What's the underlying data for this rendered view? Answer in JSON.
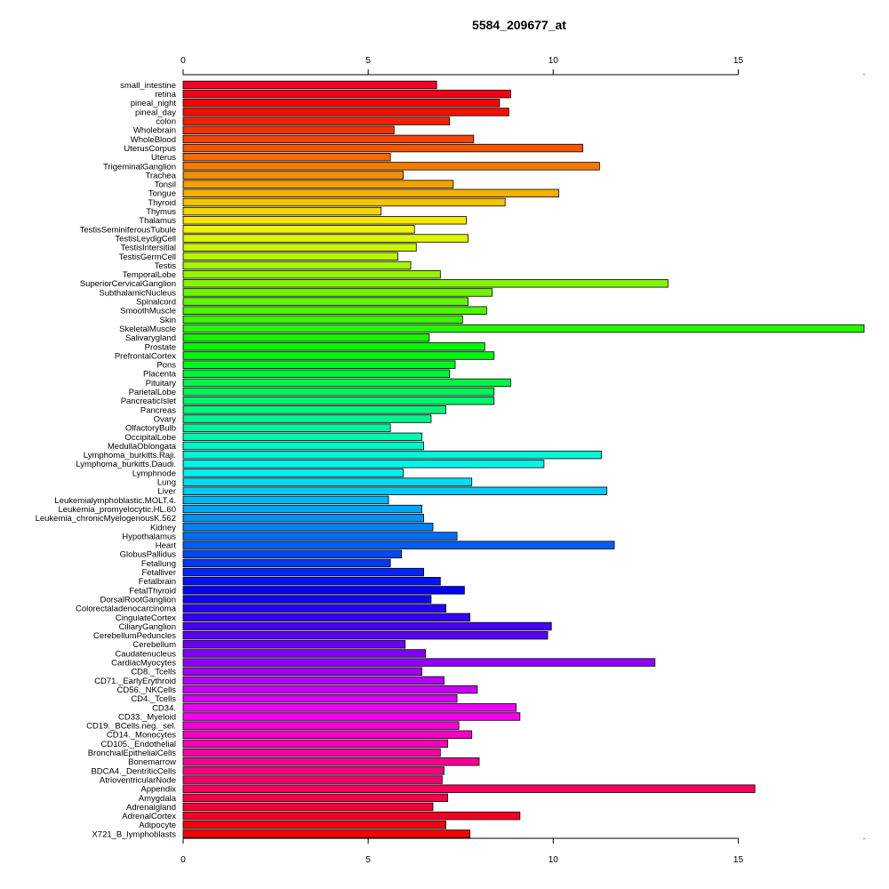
{
  "chart_data": {
    "type": "bar",
    "orientation": "horizontal",
    "title": "5584_209677_at",
    "xlim": [
      0,
      18.4
    ],
    "xticks": [
      0,
      5,
      10,
      15
    ],
    "tick_labels": [
      "0",
      "5",
      "10",
      "15"
    ],
    "categories": [
      "small_intestine",
      "retina",
      "pineal_night",
      "pineal_day",
      "colon",
      "Wholebrain",
      "WholeBlood",
      "UterusCorpus",
      "Uterus",
      "TrigeminalGanglion",
      "Trachea",
      "Tonsil",
      "Tongue",
      "Thyroid",
      "Thymus",
      "Thalamus",
      "TestisSeminiferousTubule",
      "TestisLeydigCell",
      "TestisIntersitial",
      "TestisGermCell",
      "Testis",
      "TemporalLobe",
      "SuperiorCervicalGanglion",
      "SubthalamicNucleus",
      "Spinalcord",
      "SmoothMuscle",
      "Skin",
      "SkeletalMuscle",
      "Salivarygland",
      "Prostate",
      "PrefrontalCortex",
      "Pons",
      "Placenta",
      "Pituitary",
      "ParietalLobe",
      "PancreaticIslet",
      "Pancreas",
      "Ovary",
      "OlfactoryBulb",
      "OccipitalLobe",
      "MedullaOblongata",
      "Lymphoma_burkitts.Raji.",
      "Lymphoma_burkitts.Daudi.",
      "Lymphnode",
      "Lung",
      "Liver",
      "Leukemialymphoblastic.MOLT.4.",
      "Leukemia_promyelocytic.HL.60",
      "Leukemia_chronicMyelogenousK.562",
      "Kidney",
      "Hypothalamus",
      "Heart",
      "GlobusPallidus",
      "Fetallung",
      "Fetalliver",
      "Fetalbrain",
      "FetalThyroid",
      "DorsalRootGanglion",
      "Colorectaladenocarcinoma",
      "CingulateCortex",
      "CiliaryGanglion",
      "CerebellumPeduncles",
      "Cerebellum",
      "Caudatenucleus",
      "CardiacMyocytes",
      "CD8._Tcells",
      "CD71._EarlyErythroid",
      "CD56._NKCells",
      "CD4._Tcells",
      "CD34.",
      "CD33._Myeloid",
      "CD19._BCells.neg._sel.",
      "CD14._Monocytes",
      "CD105._Endothelial",
      "BronchialEpithelialCells",
      "Bonemarrow",
      "BDCA4._DentriticCells",
      "AtrioventricularNode",
      "Appendix",
      "Amygdala",
      "Adrenalgland",
      "AdrenalCortex",
      "Adipocyte",
      "X721_B_lymphoblasts"
    ],
    "values": [
      6.85,
      8.85,
      8.55,
      8.8,
      7.2,
      5.7,
      7.85,
      10.8,
      5.6,
      11.25,
      5.95,
      7.3,
      10.15,
      8.7,
      5.35,
      7.65,
      6.25,
      7.7,
      6.3,
      5.8,
      6.15,
      6.95,
      13.1,
      8.35,
      7.7,
      8.2,
      7.55,
      18.4,
      6.65,
      8.15,
      8.4,
      7.35,
      7.2,
      8.85,
      8.4,
      8.4,
      7.1,
      6.7,
      5.6,
      6.45,
      6.5,
      11.3,
      9.75,
      5.95,
      7.8,
      11.45,
      5.55,
      6.45,
      6.5,
      6.75,
      7.4,
      11.65,
      5.9,
      5.6,
      6.5,
      6.95,
      7.6,
      6.7,
      7.1,
      7.75,
      9.95,
      9.85,
      6.0,
      6.55,
      12.75,
      6.45,
      7.05,
      7.95,
      7.4,
      9.0,
      9.1,
      7.45,
      7.8,
      7.15,
      6.95,
      8.0,
      7.05,
      7.0,
      15.45,
      7.15,
      6.75,
      9.1,
      7.1,
      7.75
    ]
  }
}
